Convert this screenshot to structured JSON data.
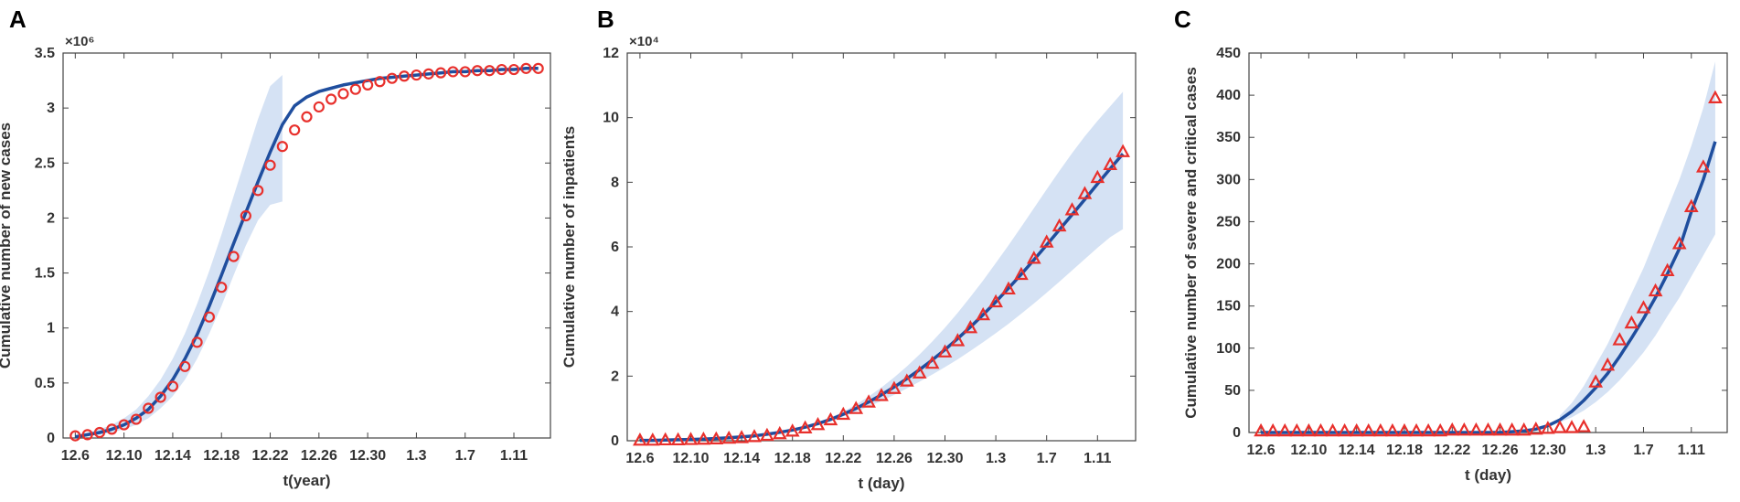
{
  "chart_data": [
    {
      "type": "line",
      "panel": "A",
      "y_multiplier": "×10⁶",
      "xlabel": "t(year)",
      "ylabel": "Cumulative number of new cases",
      "categories": [
        "12.6",
        null,
        null,
        null,
        "12.10",
        null,
        null,
        null,
        "12.14",
        null,
        null,
        null,
        "12.18",
        null,
        null,
        null,
        "12.22",
        null,
        null,
        null,
        "12.26",
        null,
        null,
        null,
        "12.30",
        null,
        null,
        null,
        "1.3",
        null,
        null,
        null,
        "1.7",
        null,
        null,
        null,
        "1.11",
        null,
        null
      ],
      "ylim": [
        0,
        3.5
      ],
      "yticks": [
        0,
        0.5,
        1,
        1.5,
        2,
        2.5,
        3,
        3.5
      ],
      "band": {
        "color": "#d5e2f4",
        "upper": [
          0.03,
          0.05,
          0.08,
          0.12,
          0.18,
          0.26,
          0.38,
          0.53,
          0.72,
          0.95,
          1.22,
          1.52,
          1.85,
          2.2,
          2.55,
          2.9,
          3.2,
          3.3,
          null,
          null,
          null,
          null,
          null,
          null,
          null,
          null,
          null,
          null,
          null,
          null,
          null,
          null,
          null,
          null,
          null,
          null,
          null,
          null,
          null
        ],
        "lower": [
          0.0,
          0.02,
          0.03,
          0.05,
          0.08,
          0.12,
          0.18,
          0.27,
          0.38,
          0.53,
          0.72,
          0.95,
          1.2,
          1.48,
          1.75,
          1.98,
          2.12,
          2.15,
          null,
          null,
          null,
          null,
          null,
          null,
          null,
          null,
          null,
          null,
          null,
          null,
          null,
          null,
          null,
          null,
          null,
          null,
          null,
          null,
          null
        ]
      },
      "series": [
        {
          "color": "#1f4e9e",
          "marker": "none",
          "values": [
            0.01,
            0.03,
            0.05,
            0.08,
            0.12,
            0.18,
            0.26,
            0.38,
            0.53,
            0.72,
            0.94,
            1.2,
            1.48,
            1.77,
            2.05,
            2.33,
            2.6,
            2.85,
            3.02,
            3.1,
            3.15,
            3.18,
            3.21,
            3.23,
            3.25,
            3.27,
            3.28,
            3.29,
            3.3,
            3.31,
            3.32,
            3.33,
            3.33,
            3.34,
            3.34,
            3.35,
            3.35,
            3.36,
            3.36
          ]
        },
        {
          "color": "#e8302c",
          "marker": "circle",
          "values": [
            0.02,
            0.03,
            0.05,
            0.08,
            0.12,
            0.17,
            0.27,
            0.37,
            0.47,
            0.65,
            0.87,
            1.1,
            1.37,
            1.65,
            2.02,
            2.25,
            2.48,
            2.65,
            2.8,
            2.92,
            3.01,
            3.08,
            3.13,
            3.17,
            3.21,
            3.24,
            3.27,
            3.29,
            3.3,
            3.31,
            3.32,
            3.33,
            3.33,
            3.34,
            3.34,
            3.35,
            3.35,
            3.36,
            3.36
          ]
        }
      ]
    },
    {
      "type": "line",
      "panel": "B",
      "y_multiplier": "×10⁴",
      "xlabel": "t (day)",
      "ylabel": "Cumulative number of inpatients",
      "categories": [
        "12.6",
        null,
        null,
        null,
        "12.10",
        null,
        null,
        null,
        "12.14",
        null,
        null,
        null,
        "12.18",
        null,
        null,
        null,
        "12.22",
        null,
        null,
        null,
        "12.26",
        null,
        null,
        null,
        "12.30",
        null,
        null,
        null,
        "1.3",
        null,
        null,
        null,
        "1.7",
        null,
        null,
        null,
        "1.11",
        null,
        null
      ],
      "ylim": [
        0,
        12
      ],
      "yticks": [
        0,
        2,
        4,
        6,
        8,
        10,
        12
      ],
      "band": {
        "color": "#d5e2f4",
        "upper": [
          null,
          null,
          null,
          null,
          null,
          null,
          null,
          null,
          null,
          null,
          null,
          null,
          0.35,
          0.45,
          0.57,
          0.72,
          0.9,
          1.12,
          1.37,
          1.65,
          1.96,
          2.3,
          2.67,
          3.07,
          3.5,
          3.96,
          4.45,
          4.96,
          5.5,
          6.05,
          6.62,
          7.2,
          7.78,
          8.35,
          8.9,
          9.42,
          9.9,
          10.35,
          10.8
        ],
        "lower": [
          null,
          null,
          null,
          null,
          null,
          null,
          null,
          null,
          null,
          null,
          null,
          null,
          0.31,
          0.39,
          0.49,
          0.61,
          0.75,
          0.9,
          1.06,
          1.23,
          1.42,
          1.62,
          1.83,
          2.05,
          2.28,
          2.52,
          2.78,
          3.05,
          3.33,
          3.62,
          3.93,
          4.25,
          4.58,
          4.92,
          5.27,
          5.62,
          5.97,
          6.3,
          6.55
        ]
      },
      "series": [
        {
          "color": "#1f4e9e",
          "marker": "none",
          "values": [
            0.01,
            0.01,
            0.02,
            0.03,
            0.04,
            0.05,
            0.07,
            0.09,
            0.12,
            0.15,
            0.2,
            0.26,
            0.33,
            0.42,
            0.53,
            0.66,
            0.82,
            1.0,
            1.2,
            1.42,
            1.66,
            1.92,
            2.2,
            2.5,
            2.82,
            3.16,
            3.52,
            3.9,
            4.3,
            4.72,
            5.15,
            5.6,
            6.06,
            6.53,
            7.0,
            7.47,
            7.95,
            8.42,
            8.88
          ]
        },
        {
          "color": "#e8302c",
          "marker": "triangle",
          "values": [
            0.02,
            0.02,
            0.03,
            0.03,
            0.04,
            0.05,
            0.06,
            0.08,
            0.1,
            0.13,
            0.17,
            0.22,
            0.3,
            0.4,
            0.5,
            0.65,
            0.82,
            1.0,
            1.2,
            1.4,
            1.62,
            1.85,
            2.1,
            2.4,
            2.75,
            3.1,
            3.5,
            3.9,
            4.3,
            4.7,
            5.15,
            5.65,
            6.15,
            6.65,
            7.15,
            7.65,
            8.15,
            8.55,
            8.95
          ]
        }
      ]
    },
    {
      "type": "line",
      "panel": "C",
      "xlabel": "t (day)",
      "ylabel": "Cumulative number of severe and critical cases",
      "categories": [
        "12.6",
        null,
        null,
        null,
        "12.10",
        null,
        null,
        null,
        "12.14",
        null,
        null,
        null,
        "12.18",
        null,
        null,
        null,
        "12.22",
        null,
        null,
        null,
        "12.26",
        null,
        null,
        null,
        "12.30",
        null,
        null,
        null,
        "1.3",
        null,
        null,
        null,
        "1.7",
        null,
        null,
        null,
        "1.11",
        null,
        null
      ],
      "ylim": [
        0,
        450
      ],
      "yticks": [
        0,
        50,
        100,
        150,
        200,
        250,
        300,
        350,
        400,
        450
      ],
      "band": {
        "color": "#d5e2f4",
        "upper": [
          null,
          null,
          null,
          null,
          null,
          null,
          null,
          null,
          null,
          null,
          null,
          null,
          null,
          null,
          null,
          null,
          null,
          null,
          null,
          null,
          null,
          null,
          null,
          null,
          null,
          20,
          35,
          55,
          80,
          105,
          135,
          165,
          195,
          230,
          265,
          300,
          340,
          385,
          440
        ],
        "lower": [
          null,
          null,
          null,
          null,
          null,
          null,
          null,
          null,
          null,
          null,
          null,
          null,
          null,
          null,
          null,
          null,
          null,
          null,
          null,
          null,
          null,
          null,
          null,
          null,
          null,
          12,
          18,
          26,
          36,
          48,
          62,
          78,
          95,
          115,
          138,
          160,
          185,
          210,
          235
        ]
      },
      "series": [
        {
          "color": "#1f4e9e",
          "marker": "none",
          "values": [
            0,
            0,
            0,
            0,
            0,
            0,
            0,
            0,
            0,
            0,
            0,
            0,
            0,
            0,
            0,
            0,
            0,
            0,
            0,
            0,
            0,
            1,
            2,
            4,
            8,
            15,
            25,
            38,
            53,
            70,
            90,
            112,
            135,
            160,
            188,
            218,
            262,
            300,
            345
          ]
        },
        {
          "color": "#e8302c",
          "marker": "triangle",
          "values": [
            2,
            2,
            2,
            2,
            2,
            2,
            2,
            2,
            2,
            2,
            2,
            2,
            2,
            2,
            2,
            2,
            3,
            3,
            3,
            3,
            3,
            3,
            3,
            4,
            5,
            6,
            6,
            7,
            60,
            80,
            110,
            130,
            148,
            168,
            192,
            224,
            268,
            315,
            397
          ]
        }
      ]
    }
  ]
}
